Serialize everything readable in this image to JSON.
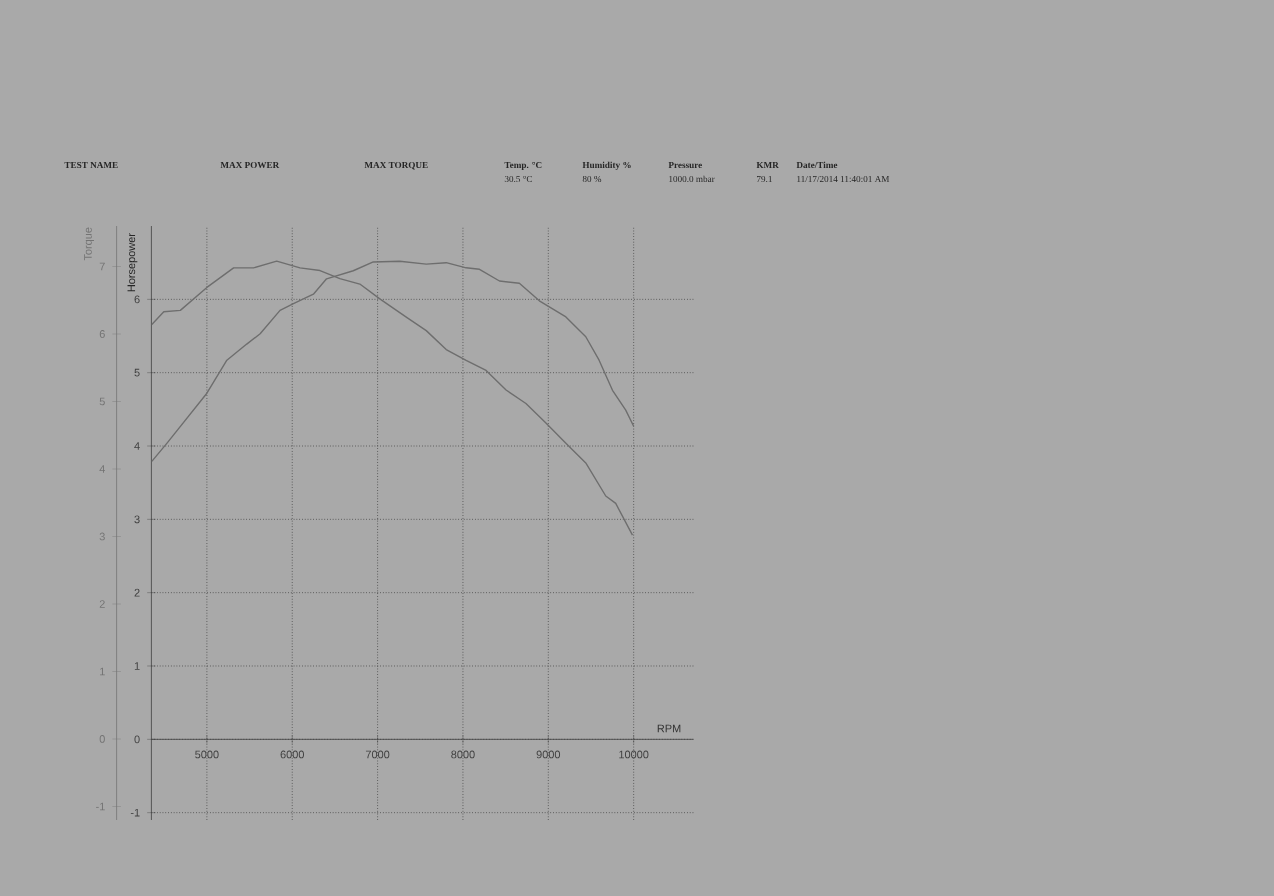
{
  "chart_data": {
    "type": "line",
    "xlabel": "RPM",
    "ylabel": "Horsepower",
    "y2label": "Torque",
    "annotations": [
      "TEST NAME",
      "MAX POWER",
      "MAX TORQUE",
      "Temp. °C",
      "Humidity %",
      "Pressure",
      "KMR",
      "Date/Time",
      "30.5 °C",
      "80 %",
      "1000.0 mbar",
      "79.1",
      "11/17/2014 11:40:01 AM"
    ],
    "xlim": [
      4350,
      10700
    ],
    "xticks": [
      5000,
      6000,
      7000,
      8000,
      9000,
      10000
    ],
    "ylim": [
      -1.1,
      7
    ],
    "yticks": [
      -1,
      0,
      1,
      2,
      3,
      4,
      5,
      6
    ],
    "y2lim": [
      -1.2,
      7.6
    ],
    "y2ticks": [
      -1,
      0,
      1,
      2,
      3,
      4,
      5,
      6,
      7
    ],
    "grid": true,
    "series": [
      {
        "color": "#6e6e6e",
        "x": [
          4355,
          4533,
          5000,
          5234,
          5467,
          5624,
          5857,
          6014,
          6248,
          6402,
          6715,
          6949,
          7259,
          7570,
          7804,
          8037,
          8194,
          8428,
          8661,
          8895,
          9206,
          9439,
          9595,
          9752,
          9907,
          10000
        ],
        "values": [
          3.79,
          4.04,
          4.72,
          5.17,
          5.39,
          5.53,
          5.85,
          5.94,
          6.07,
          6.28,
          6.39,
          6.51,
          6.52,
          6.48,
          6.5,
          6.43,
          6.41,
          6.25,
          6.22,
          5.98,
          5.76,
          5.49,
          5.17,
          4.76,
          4.49,
          4.27
        ]
      },
      {
        "color": "#6e6e6e",
        "axis": "y2",
        "x": [
          4355,
          4495,
          4689,
          5000,
          5313,
          5547,
          5818,
          6091,
          6325,
          6558,
          6792,
          7026,
          7336,
          7570,
          7804,
          8037,
          8271,
          8505,
          8738,
          8972,
          9206,
          9439,
          9673,
          9790,
          9986
        ],
        "values": [
          6.14,
          6.33,
          6.35,
          6.69,
          6.98,
          6.98,
          7.08,
          6.98,
          6.94,
          6.82,
          6.74,
          6.52,
          6.25,
          6.05,
          5.77,
          5.61,
          5.46,
          5.17,
          4.97,
          4.68,
          4.38,
          4.09,
          3.6,
          3.49,
          3.02
        ]
      }
    ]
  }
}
